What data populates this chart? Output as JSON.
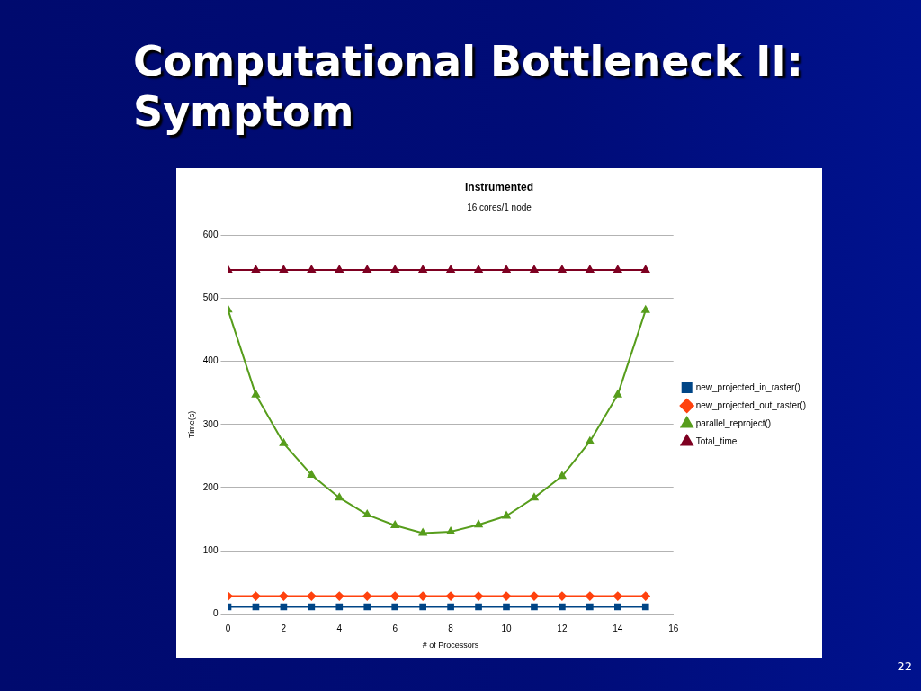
{
  "chart_data": {
    "type": "line",
    "title": "Computational Bottleneck II: Symptom",
    "subtitle": "Instrumented",
    "annotations": [
      "16 cores/1 node",
      "22"
    ],
    "xlabel": "# of Processors",
    "ylabel": "Time(s)",
    "x": [
      0,
      1,
      2,
      3,
      4,
      5,
      6,
      7,
      8,
      9,
      10,
      11,
      12,
      13,
      14,
      15
    ],
    "series": [
      {
        "name": "new_projected_in_raster()",
        "color": "#004586",
        "marker": "square",
        "values": [
          11,
          11,
          11,
          11,
          11,
          11,
          11,
          11,
          11,
          11,
          11,
          11,
          11,
          11,
          11,
          11
        ]
      },
      {
        "name": "new_projected_out_raster()",
        "color": "#ff420e",
        "marker": "diamond",
        "values": [
          28,
          28,
          28,
          28,
          28,
          28,
          28,
          28,
          28,
          28,
          28,
          28,
          28,
          28,
          28,
          28
        ]
      },
      {
        "name": "parallel_reproject()",
        "color": "#579d1c",
        "marker": "triangle",
        "values": [
          482,
          347,
          270,
          220,
          184,
          157,
          140,
          128,
          130,
          141,
          155,
          184,
          218,
          273,
          347,
          481
        ]
      },
      {
        "name": "Total_time",
        "color": "#7e0021",
        "marker": "triangle",
        "values": [
          545,
          545,
          545,
          545,
          545,
          545,
          545,
          545,
          545,
          545,
          545,
          545,
          545,
          545,
          545,
          545
        ]
      }
    ],
    "xlim": [
      0,
      16
    ],
    "xticks": [
      0,
      2,
      4,
      6,
      8,
      10,
      12,
      14,
      16
    ],
    "ylim": [
      0,
      600
    ],
    "yticks": [
      0,
      100,
      200,
      300,
      400,
      500,
      600
    ],
    "grid": "y",
    "legend": "right",
    "line_style": "solid"
  }
}
